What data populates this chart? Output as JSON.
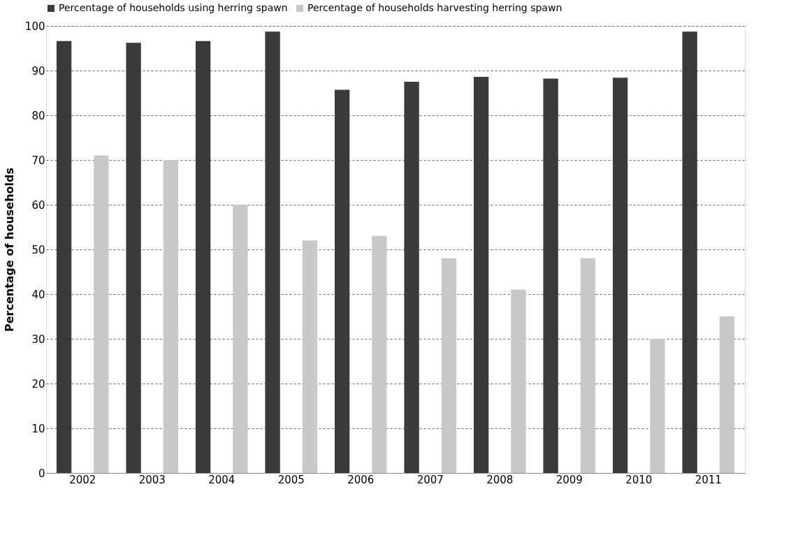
{
  "chart_data": {
    "type": "bar",
    "ylabel": "Percentage of households",
    "categories": [
      "2002",
      "2003",
      "2004",
      "2005",
      "2006",
      "2007",
      "2008",
      "2009",
      "2010",
      "2011"
    ],
    "series": [
      {
        "name": "Percentage of households using herring spawn",
        "color": "#3a3a3a",
        "values": [
          96.6,
          96.2,
          96.6,
          98.7,
          85.7,
          87.5,
          88.6,
          88.2,
          88.4,
          98.7
        ]
      },
      {
        "name": "Percentage of households harvesting herring spawn",
        "color": "#c8c8c8",
        "values": [
          71,
          70,
          60,
          52,
          53,
          48,
          41,
          48,
          30,
          35
        ]
      }
    ],
    "ylim": [
      0,
      100
    ],
    "yticks": [
      0,
      10,
      20,
      30,
      40,
      50,
      60,
      70,
      80,
      90,
      100
    ],
    "grid": "y",
    "legend": "top"
  }
}
